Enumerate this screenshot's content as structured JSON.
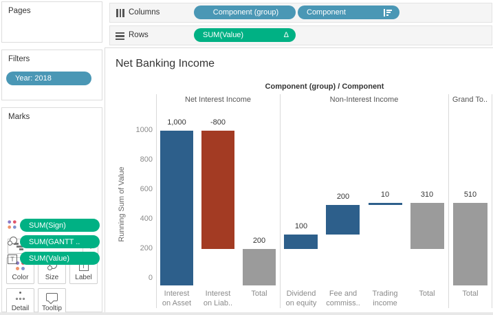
{
  "colors": {
    "pill_blue": "#4a97b5",
    "pill_green": "#00b184",
    "bar_increase": "#2d5f8b",
    "bar_decrease": "#a33b23",
    "bar_total": "#9b9b9b"
  },
  "left_panel": {
    "pages": {
      "label": "Pages"
    },
    "filters": {
      "label": "Filters",
      "pills": [
        {
          "label": "Year: 2018"
        }
      ]
    },
    "marks": {
      "label": "Marks",
      "mark_type": "Gantt Bar",
      "buttons": [
        {
          "label": "Color"
        },
        {
          "label": "Size"
        },
        {
          "label": "Label"
        },
        {
          "label": "Detail"
        },
        {
          "label": "Tooltip"
        }
      ],
      "pills": [
        {
          "icon": "color-icon",
          "label": "SUM(Sign)"
        },
        {
          "icon": "size-icon",
          "label": "SUM(GANTT .."
        },
        {
          "icon": "label-icon",
          "label": "SUM(Value)"
        }
      ]
    }
  },
  "shelves": {
    "columns": {
      "label": "Columns",
      "pills": [
        {
          "label": "Component (group)"
        },
        {
          "label": "Component",
          "icon": "sort-descending-icon"
        }
      ]
    },
    "rows": {
      "label": "Rows",
      "pills": [
        {
          "label": "SUM(Value)",
          "icon": "delta-icon",
          "icon_char": "Δ"
        }
      ]
    }
  },
  "sheet": {
    "title": "Net Banking Income",
    "column_header": "Component (group) / Component"
  },
  "chart_data": {
    "type": "bar",
    "subtype": "waterfall-gantt",
    "title": "Net Banking Income",
    "xlabel": "Component (group) / Component",
    "ylabel": "Running Sum of Value",
    "yticks": [
      0,
      200,
      400,
      600,
      800,
      1000
    ],
    "ylim": [
      0,
      1000
    ],
    "grid": false,
    "legend": false,
    "groups": [
      {
        "label": "Net Interest Income",
        "bars": [
          {
            "label_lines": [
              "Interest",
              "on Asset"
            ],
            "value": 1000,
            "value_label": "1,000",
            "start": 0,
            "end": 1000,
            "kind": "increase"
          },
          {
            "label_lines": [
              "Interest",
              "on Liab.."
            ],
            "value": -800,
            "value_label": "-800",
            "start": 1000,
            "end": 200,
            "kind": "decrease"
          },
          {
            "label_lines": [
              "Total"
            ],
            "value": 200,
            "value_label": "200",
            "start": 200,
            "end": 0,
            "kind": "total"
          }
        ]
      },
      {
        "label": "Non-Interest Income",
        "bars": [
          {
            "label_lines": [
              "Dividend",
              "on equity"
            ],
            "value": 100,
            "value_label": "100",
            "start": 200,
            "end": 300,
            "kind": "increase"
          },
          {
            "label_lines": [
              "Fee and",
              "commiss.."
            ],
            "value": 200,
            "value_label": "200",
            "start": 300,
            "end": 500,
            "kind": "increase"
          },
          {
            "label_lines": [
              "Trading",
              "income"
            ],
            "value": 10,
            "value_label": "10",
            "start": 500,
            "end": 510,
            "kind": "increase"
          },
          {
            "label_lines": [
              "Total"
            ],
            "value": 310,
            "value_label": "310",
            "start": 510,
            "end": 200,
            "kind": "total"
          }
        ]
      },
      {
        "label": "Grand To..",
        "bars": [
          {
            "label_lines": [
              "Total"
            ],
            "value": 510,
            "value_label": "510",
            "start": 510,
            "end": 0,
            "kind": "total"
          }
        ]
      }
    ]
  }
}
